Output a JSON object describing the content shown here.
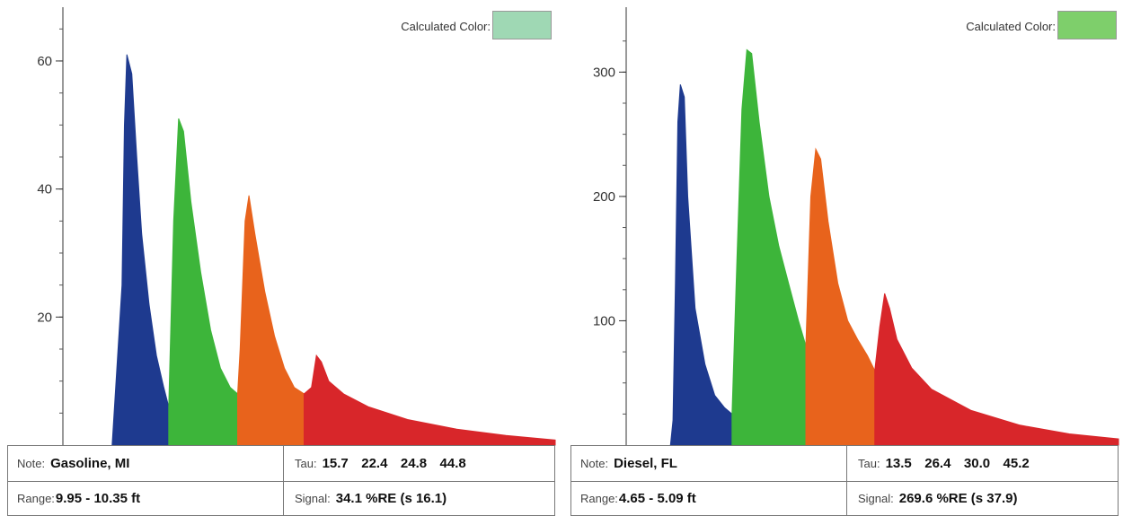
{
  "panels": [
    {
      "calculated_color_label": "Calculated Color:",
      "calculated_color_hex": "#9fd8b4",
      "note_label": "Note:",
      "note_value": "Gasoline, MI",
      "tau_label": "Tau:",
      "tau_values": [
        "15.7",
        "22.4",
        "24.8",
        "44.8"
      ],
      "range_label": "Range:",
      "range_value": "9.95 - 10.35 ft",
      "signal_label": "Signal:",
      "signal_value": "34.1 %RE (s 16.1)"
    },
    {
      "calculated_color_label": "Calculated Color:",
      "calculated_color_hex": "#7ecf6b",
      "note_label": "Note:",
      "note_value": "Diesel, FL",
      "tau_label": "Tau:",
      "tau_values": [
        "13.5",
        "26.4",
        "30.0",
        "45.2"
      ],
      "range_label": "Range:",
      "range_value": "4.65 - 5.09 ft",
      "signal_label": "Signal:",
      "signal_value": "269.6 %RE (s 37.9)"
    }
  ],
  "chart_data": [
    {
      "type": "area",
      "title": "",
      "xlabel": "",
      "ylabel": "",
      "ylim": [
        0,
        67
      ],
      "yticks": [
        20,
        40,
        60
      ],
      "ytick_labels": [
        "20",
        "40",
        "60"
      ],
      "xlim": [
        0,
        1
      ],
      "grid": false,
      "legend": "none",
      "colors": [
        "#1e3a8f",
        "#3db53a",
        "#e8631c",
        "#d8262a"
      ],
      "series": [
        {
          "points": [
            [
              0.1,
              0
            ],
            [
              0.12,
              25
            ],
            [
              0.125,
              50
            ],
            [
              0.13,
              61
            ],
            [
              0.14,
              58
            ],
            [
              0.15,
              45
            ],
            [
              0.16,
              33
            ],
            [
              0.175,
              22
            ],
            [
              0.19,
              14
            ],
            [
              0.205,
              9
            ],
            [
              0.215,
              6
            ]
          ]
        },
        {
          "points": [
            [
              0.215,
              6
            ],
            [
              0.225,
              35
            ],
            [
              0.235,
              51
            ],
            [
              0.245,
              49
            ],
            [
              0.26,
              38
            ],
            [
              0.28,
              27
            ],
            [
              0.3,
              18
            ],
            [
              0.32,
              12
            ],
            [
              0.34,
              9
            ],
            [
              0.355,
              8
            ]
          ]
        },
        {
          "points": [
            [
              0.355,
              8
            ],
            [
              0.36,
              15
            ],
            [
              0.37,
              35
            ],
            [
              0.378,
              39
            ],
            [
              0.39,
              33
            ],
            [
              0.41,
              24
            ],
            [
              0.43,
              17
            ],
            [
              0.45,
              12
            ],
            [
              0.47,
              9
            ],
            [
              0.49,
              8
            ]
          ]
        },
        {
          "points": [
            [
              0.49,
              8
            ],
            [
              0.505,
              9
            ],
            [
              0.515,
              14
            ],
            [
              0.525,
              13
            ],
            [
              0.54,
              10
            ],
            [
              0.57,
              8
            ],
            [
              0.62,
              6
            ],
            [
              0.7,
              4
            ],
            [
              0.8,
              2.5
            ],
            [
              0.9,
              1.5
            ],
            [
              1.0,
              0.8
            ]
          ]
        }
      ]
    },
    {
      "type": "area",
      "title": "",
      "xlabel": "",
      "ylabel": "",
      "ylim": [
        0,
        345
      ],
      "yticks": [
        100,
        200,
        300
      ],
      "ytick_labels": [
        "100",
        "200",
        "300"
      ],
      "xlim": [
        0,
        1
      ],
      "grid": false,
      "legend": "none",
      "colors": [
        "#1e3a8f",
        "#3db53a",
        "#e8631c",
        "#d8262a"
      ],
      "series": [
        {
          "points": [
            [
              0.09,
              0
            ],
            [
              0.095,
              20
            ],
            [
              0.1,
              130
            ],
            [
              0.105,
              260
            ],
            [
              0.11,
              290
            ],
            [
              0.118,
              280
            ],
            [
              0.125,
              200
            ],
            [
              0.14,
              110
            ],
            [
              0.16,
              65
            ],
            [
              0.18,
              40
            ],
            [
              0.2,
              30
            ],
            [
              0.215,
              25
            ]
          ]
        },
        {
          "points": [
            [
              0.215,
              25
            ],
            [
              0.225,
              150
            ],
            [
              0.235,
              270
            ],
            [
              0.245,
              318
            ],
            [
              0.255,
              315
            ],
            [
              0.27,
              260
            ],
            [
              0.29,
              200
            ],
            [
              0.31,
              160
            ],
            [
              0.33,
              130
            ],
            [
              0.35,
              100
            ],
            [
              0.365,
              80
            ]
          ]
        },
        {
          "points": [
            [
              0.365,
              80
            ],
            [
              0.375,
              200
            ],
            [
              0.385,
              238
            ],
            [
              0.395,
              230
            ],
            [
              0.41,
              180
            ],
            [
              0.43,
              130
            ],
            [
              0.45,
              100
            ],
            [
              0.47,
              85
            ],
            [
              0.49,
              72
            ],
            [
              0.505,
              60
            ]
          ]
        },
        {
          "points": [
            [
              0.505,
              60
            ],
            [
              0.515,
              95
            ],
            [
              0.525,
              122
            ],
            [
              0.535,
              110
            ],
            [
              0.55,
              85
            ],
            [
              0.58,
              62
            ],
            [
              0.62,
              45
            ],
            [
              0.7,
              28
            ],
            [
              0.8,
              16
            ],
            [
              0.9,
              9
            ],
            [
              1.0,
              5
            ]
          ]
        }
      ]
    }
  ]
}
